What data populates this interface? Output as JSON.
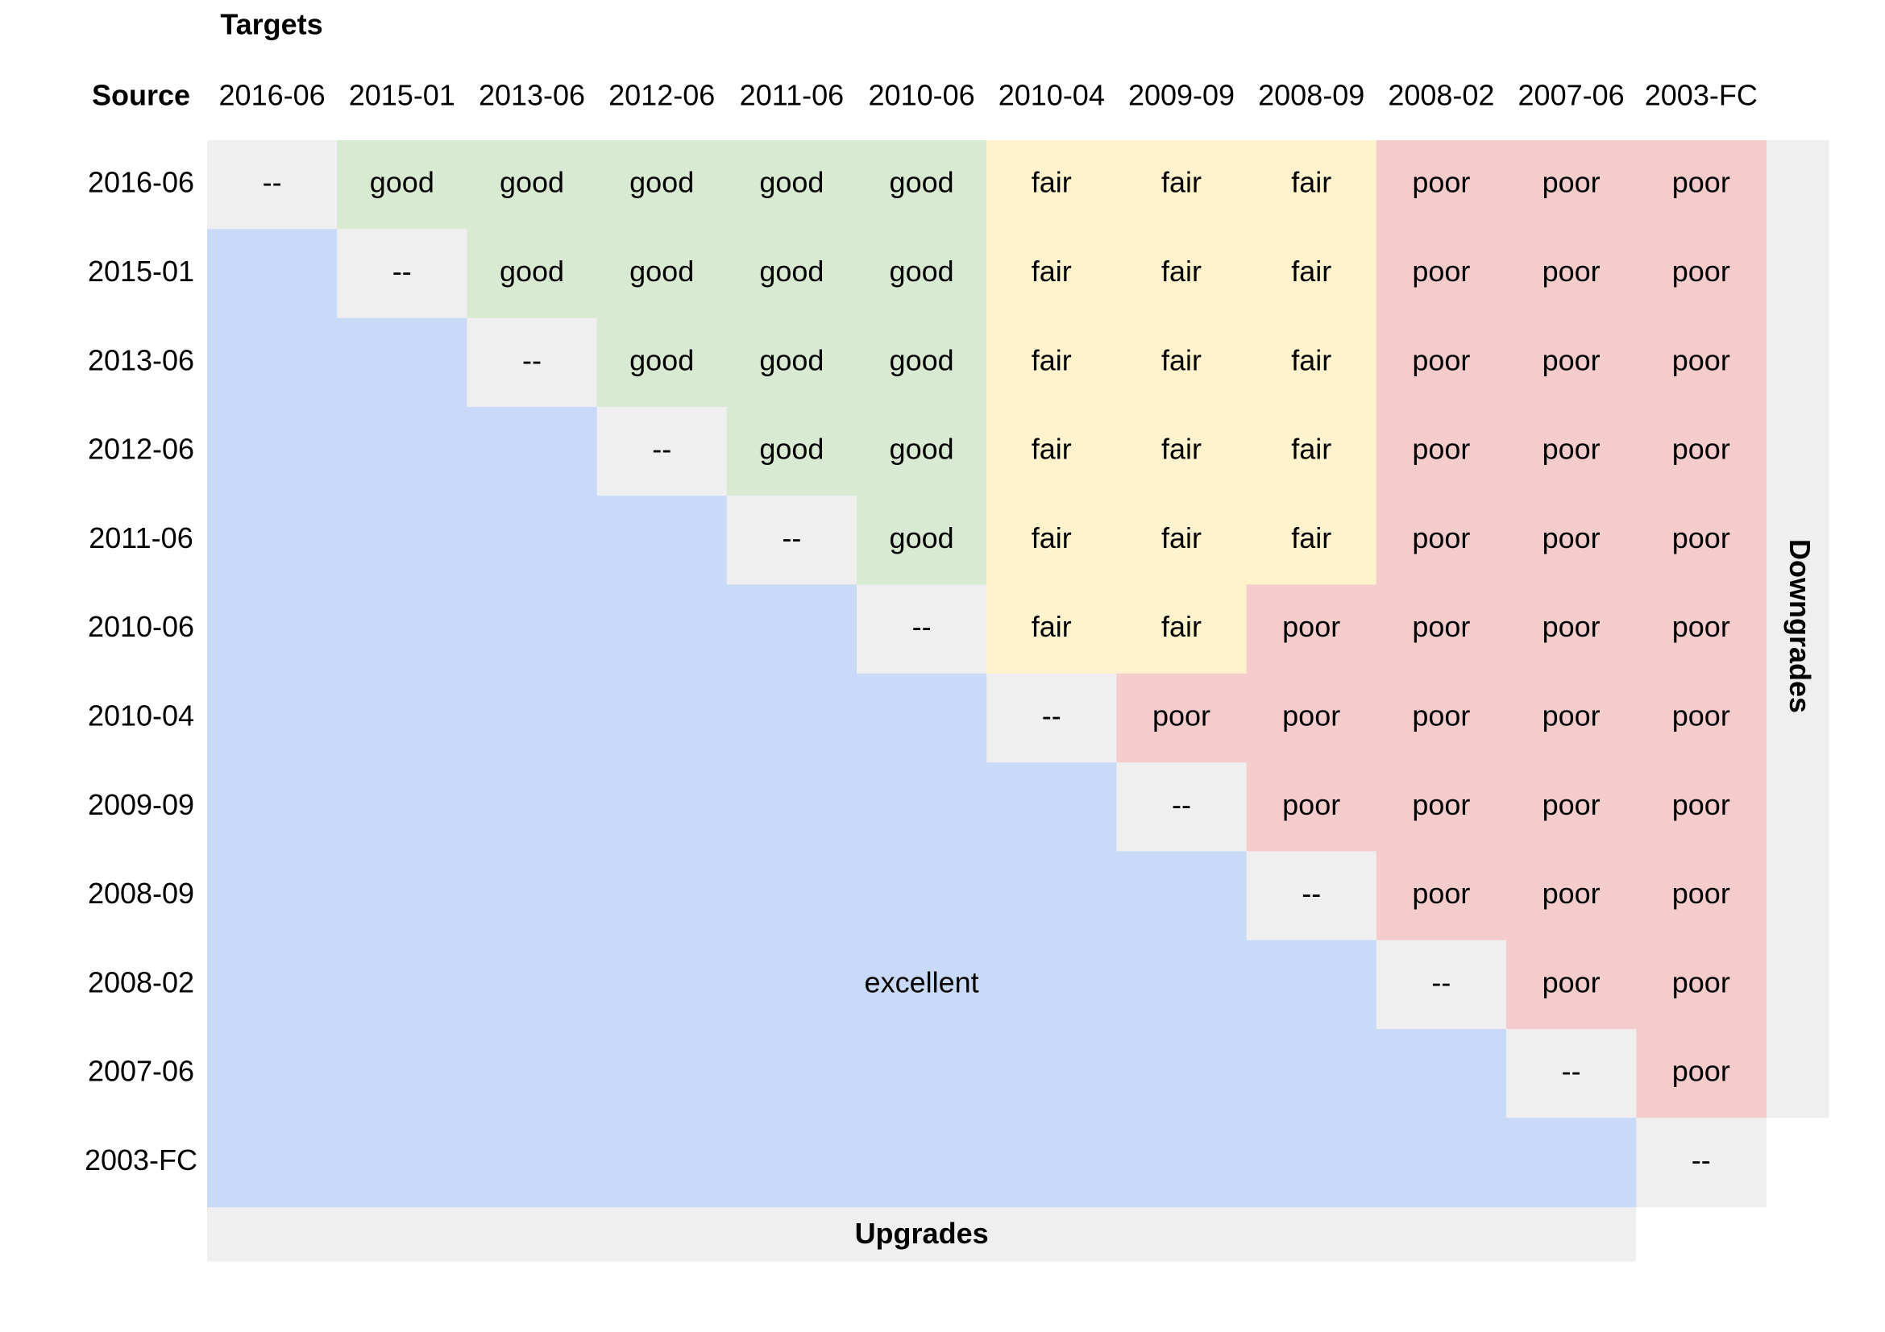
{
  "chart_data": {
    "type": "heatmap",
    "title": "",
    "xlabel": "Targets",
    "ylabel": "Source",
    "corner_label": "Source",
    "targets_label": "Targets",
    "upgrades_label": "Upgrades",
    "downgrades_label": "Downgrades",
    "diagonal_text": "--",
    "excellent_text": "excellent",
    "versions": [
      "2016-06",
      "2015-01",
      "2013-06",
      "2012-06",
      "2011-06",
      "2010-06",
      "2010-04",
      "2009-09",
      "2008-09",
      "2008-02",
      "2007-06",
      "2003-FC"
    ],
    "rating_colors": {
      "good": "#d9ead3",
      "fair": "#fff2cc",
      "poor": "#f4cccc",
      "excellent": "#c9daf8",
      "diagonal": "#efefef",
      "band": "#efefef"
    },
    "downgrades": [
      [
        "good",
        "good",
        "good",
        "good",
        "good",
        "fair",
        "fair",
        "fair",
        "poor",
        "poor",
        "poor"
      ],
      [
        "good",
        "good",
        "good",
        "good",
        "fair",
        "fair",
        "fair",
        "poor",
        "poor",
        "poor"
      ],
      [
        "good",
        "good",
        "good",
        "fair",
        "fair",
        "fair",
        "poor",
        "poor",
        "poor"
      ],
      [
        "good",
        "good",
        "fair",
        "fair",
        "fair",
        "poor",
        "poor",
        "poor"
      ],
      [
        "good",
        "fair",
        "fair",
        "fair",
        "poor",
        "poor",
        "poor"
      ],
      [
        "fair",
        "fair",
        "poor",
        "poor",
        "poor",
        "poor"
      ],
      [
        "poor",
        "poor",
        "poor",
        "poor",
        "poor"
      ],
      [
        "poor",
        "poor",
        "poor",
        "poor"
      ],
      [
        "poor",
        "poor",
        "poor"
      ],
      [
        "poor",
        "poor"
      ],
      [
        "poor"
      ],
      []
    ],
    "upgrades_rating": "excellent"
  }
}
